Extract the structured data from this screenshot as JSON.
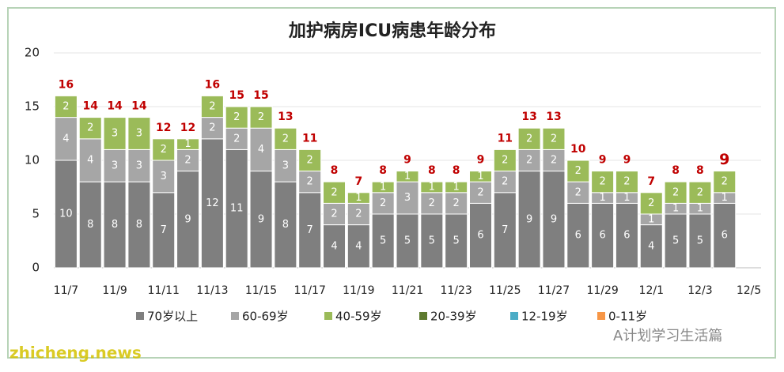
{
  "chart_data": {
    "type": "stacked_bar",
    "title": "加护病房ICU病患年龄分布",
    "categories": [
      "11/7",
      null,
      "11/9",
      null,
      "11/11",
      null,
      "11/13",
      null,
      "11/15",
      null,
      "11/17",
      null,
      "11/19",
      null,
      "11/21",
      null,
      "11/23",
      null,
      "11/25",
      null,
      "11/27",
      null,
      "11/29",
      null,
      "12/1",
      null,
      "12/3",
      null,
      "12/5"
    ],
    "series": [
      {
        "name": "70岁以上",
        "color": "#7f7f7f",
        "values": [
          10,
          8,
          8,
          8,
          7,
          9,
          12,
          11,
          9,
          8,
          7,
          4,
          4,
          5,
          5,
          5,
          5,
          6,
          7,
          9,
          9,
          6,
          6,
          6,
          4,
          5,
          5,
          6,
          null
        ]
      },
      {
        "name": "60-69岁",
        "color": "#a6a6a6",
        "values": [
          4,
          4,
          3,
          3,
          3,
          2,
          2,
          2,
          4,
          3,
          2,
          2,
          2,
          2,
          3,
          2,
          2,
          2,
          2,
          2,
          2,
          2,
          1,
          1,
          1,
          1,
          1,
          1,
          null
        ]
      },
      {
        "name": "40-59岁",
        "color": "#9bbb59",
        "values": [
          2,
          2,
          3,
          3,
          2,
          1,
          2,
          2,
          2,
          2,
          2,
          2,
          1,
          1,
          1,
          1,
          1,
          1,
          2,
          2,
          2,
          2,
          2,
          2,
          2,
          2,
          2,
          2,
          null
        ]
      },
      {
        "name": "20-39岁",
        "color": "#5e7a2f",
        "values": [
          0,
          0,
          0,
          0,
          0,
          0,
          0,
          0,
          0,
          0,
          0,
          0,
          0,
          0,
          0,
          0,
          0,
          0,
          0,
          0,
          0,
          0,
          0,
          0,
          0,
          0,
          0,
          0,
          null
        ]
      },
      {
        "name": "12-19岁",
        "color": "#4bacc6",
        "values": [
          0,
          0,
          0,
          0,
          0,
          0,
          0,
          0,
          0,
          0,
          0,
          0,
          0,
          0,
          0,
          0,
          0,
          0,
          0,
          0,
          0,
          0,
          0,
          0,
          0,
          0,
          0,
          0,
          null
        ]
      },
      {
        "name": "0-11岁",
        "color": "#f79646",
        "values": [
          0,
          0,
          0,
          0,
          0,
          0,
          0,
          0,
          0,
          0,
          0,
          0,
          0,
          0,
          0,
          0,
          0,
          0,
          0,
          0,
          0,
          0,
          0,
          0,
          0,
          0,
          0,
          0,
          null
        ]
      }
    ],
    "totals": [
      16,
      14,
      14,
      14,
      12,
      12,
      16,
      15,
      15,
      13,
      11,
      8,
      7,
      8,
      9,
      8,
      8,
      9,
      11,
      13,
      13,
      10,
      9,
      9,
      7,
      8,
      8,
      9,
      null
    ],
    "ylim": [
      0,
      20
    ],
    "yticks": [
      0,
      5,
      10,
      15,
      20
    ],
    "grid": true,
    "annotations": [
      "zhicheng.news",
      "A计划学习生活篇"
    ]
  }
}
